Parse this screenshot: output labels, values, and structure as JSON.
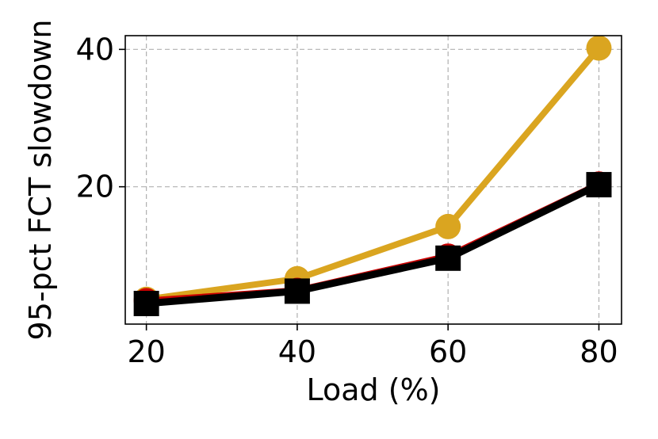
{
  "chart_data": {
    "type": "line",
    "xlabel": "Load (%)",
    "ylabel": "95-pct FCT slowdown",
    "x": [
      20,
      40,
      60,
      80
    ],
    "xticks": [
      "20",
      "40",
      "60",
      "80"
    ],
    "yticks": [
      "20",
      "40"
    ],
    "ytick_values": [
      20,
      40
    ],
    "xlim": [
      17.2,
      83
    ],
    "ylim": [
      0,
      42
    ],
    "grid": true,
    "series": [
      {
        "values": [
          3.6,
          6.6,
          14.2,
          40.2
        ],
        "color": "#DAA520",
        "marker": "circle"
      },
      {
        "values": [
          3.4,
          4.9,
          9.9,
          20.4
        ],
        "color": "#CC0000",
        "marker": "circle"
      },
      {
        "values": [
          3.0,
          4.8,
          9.6,
          20.3
        ],
        "color": "#000000",
        "marker": "square"
      }
    ]
  }
}
